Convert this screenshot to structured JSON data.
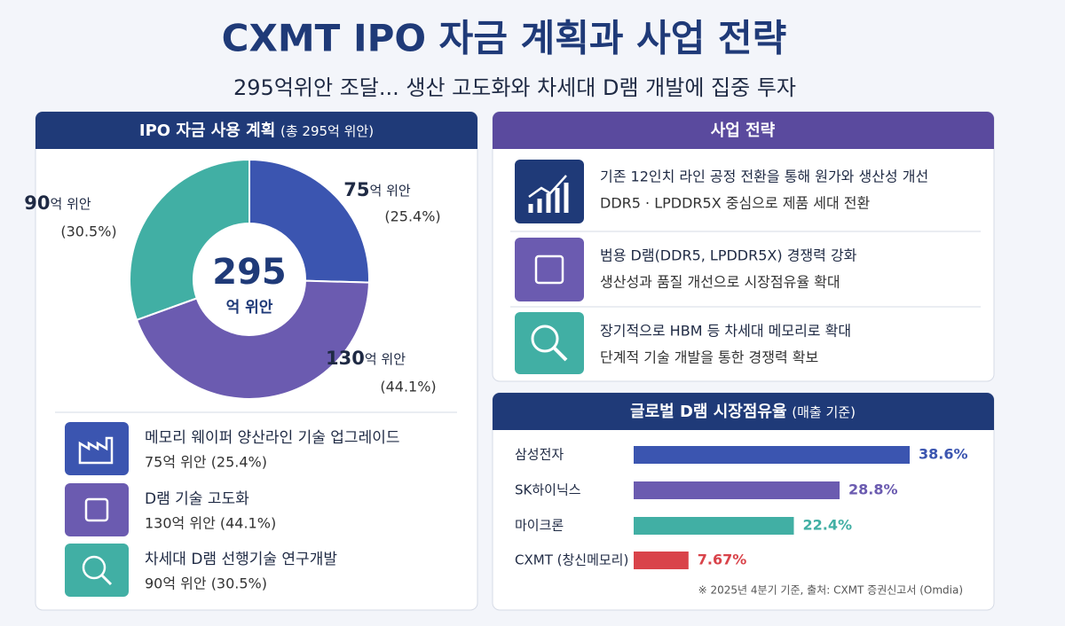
{
  "title": "CXMT IPO 자금 계획과 사업 전략",
  "subtitle": "295억위안 조달... 생산 고도화와 차세대 D램 개발에 집중 투자",
  "strategy": {
    "title": "사업 전략",
    "items": [
      {
        "title": "기존 12인치 라인 공정 전환을 통해 원가와 생산성 개선",
        "detail": "DDR5 · LPDDR5X 중심으로 제품 세대 전환"
      },
      {
        "title": "범용 D램(DDR5, LPDDR5X) 경쟁력 강화",
        "detail": "생산성과 품질 개선으로 시장점유율 확대"
      },
      {
        "title": "장기적으로 HBM 등 차세대 메모리로 확대",
        "detail": "단계적 기술 개발을 통한 경쟁력 확보"
      }
    ]
  },
  "chart_data": [
    {
      "type": "pie",
      "title": "IPO 자금 사용 계획",
      "subtitle": "(총 295억 위안)",
      "center_value": 295,
      "center_label": "억 위안",
      "categories": [
        "메모리 웨이퍼 양산라인 기술 업그레이드",
        "D램 기술 고도화",
        "차세대 D램 선행기술 연구개발"
      ],
      "details": [
        "75억 위안 (25.4%)",
        "130억 위안 (44.1%)",
        "90억 위안 (30.5%)"
      ],
      "values": [
        75,
        130,
        90
      ],
      "value_labels": [
        "75억 위안",
        "130억 위안",
        "90억 위안"
      ],
      "percents": [
        25.4,
        44.1,
        30.5
      ],
      "percent_labels": [
        "(25.4%)",
        "(44.1%)",
        "(30.5%)"
      ],
      "colors": [
        "#3b55b0",
        "#6b5bb0",
        "#41afa4"
      ]
    },
    {
      "type": "hbar",
      "title": "글로벌 D램 시장점유율",
      "subtitle": "(매출 기준)",
      "categories": [
        "삼성전자",
        "SK하이닉스",
        "마이크론",
        "CXMT (창신메모리)"
      ],
      "values": [
        38.6,
        28.8,
        22.4,
        7.67
      ],
      "value_labels": [
        "38.6%",
        "28.8%",
        "22.4%",
        "7.67%"
      ],
      "colors": [
        "#3b55b0",
        "#6b5bb0",
        "#41afa4",
        "#d9434a"
      ],
      "note": "※ 2025년 4분기 기준, 출처: CXMT 증권신고서 (Omdia)"
    }
  ]
}
